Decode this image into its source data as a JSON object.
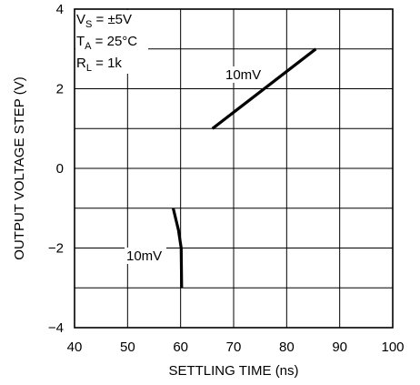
{
  "chart_data": {
    "type": "line",
    "title": "",
    "xlabel": "SETTLING TIME (ns)",
    "ylabel": "OUTPUT VOLTAGE STEP (V)",
    "xlim": [
      40,
      100
    ],
    "ylim": [
      -4,
      4
    ],
    "x_ticks": [
      "40",
      "50",
      "60",
      "70",
      "80",
      "90",
      "100"
    ],
    "y_ticks": [
      "4",
      "2",
      "0",
      "−2",
      "−4"
    ],
    "grid": true,
    "conditions": [
      {
        "main": "V",
        "sub": "S",
        "rest": " = ±5V"
      },
      {
        "main": "T",
        "sub": "A",
        "rest": " = 25°C"
      },
      {
        "main": "R",
        "sub": "L",
        "rest": " = 1k"
      }
    ],
    "series": [
      {
        "label": "10mV",
        "points": [
          [
            66,
            1.0
          ],
          [
            85.5,
            3.0
          ]
        ]
      },
      {
        "label": "10mV",
        "points": [
          [
            58.6,
            -1.0
          ],
          [
            59.6,
            -1.55
          ],
          [
            60.1,
            -2.0
          ],
          [
            60.2,
            -3.0
          ]
        ]
      }
    ]
  }
}
